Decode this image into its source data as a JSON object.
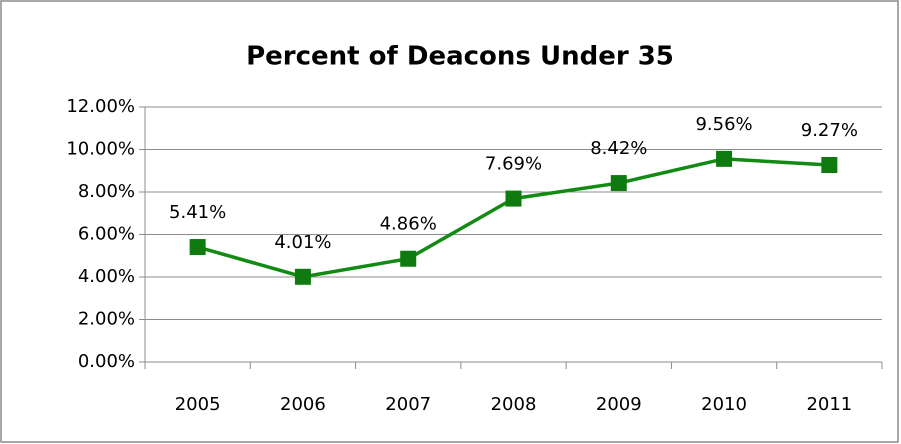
{
  "chart_data": {
    "type": "line",
    "title": "Percent of Deacons Under 35",
    "categories": [
      "2005",
      "2006",
      "2007",
      "2008",
      "2009",
      "2010",
      "2011"
    ],
    "series": [
      {
        "name": "Percent of Deacons Under 35",
        "color": "#138a13",
        "values": [
          5.41,
          4.01,
          4.86,
          7.69,
          8.42,
          9.56,
          9.27
        ],
        "value_labels": [
          "5.41%",
          "4.01%",
          "4.86%",
          "7.69%",
          "8.42%",
          "9.56%",
          "9.27%"
        ]
      }
    ],
    "ylim": [
      0,
      12
    ],
    "yticks": [
      {
        "value": 0,
        "label": "0.00%"
      },
      {
        "value": 2,
        "label": "2.00%"
      },
      {
        "value": 4,
        "label": "4.00%"
      },
      {
        "value": 6,
        "label": "6.00%"
      },
      {
        "value": 8,
        "label": "8.00%"
      },
      {
        "value": 10,
        "label": "10.00%"
      },
      {
        "value": 12,
        "label": "12.00%"
      }
    ],
    "grid": true
  }
}
